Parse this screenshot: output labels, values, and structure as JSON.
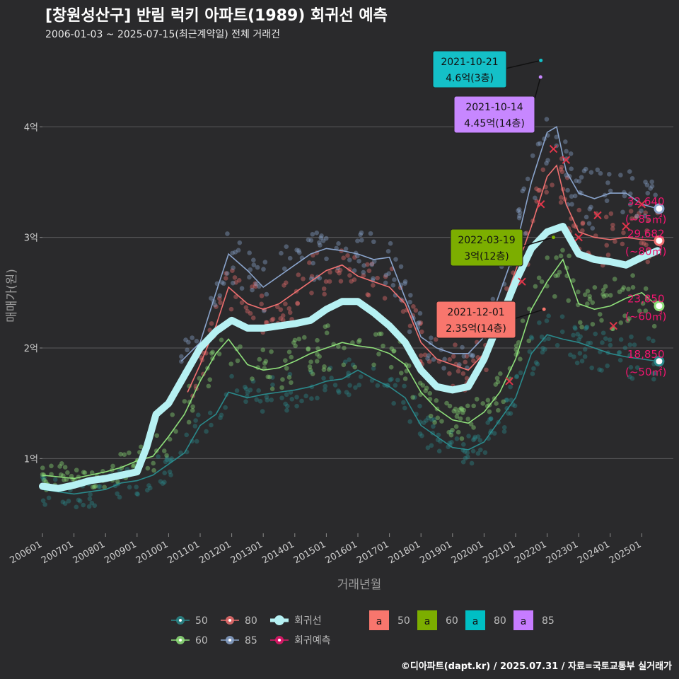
{
  "header": {
    "title": "[창원성산구] 반림 럭키 아파트(1989) 회귀선 예측",
    "subtitle": "2006-01-03 ~ 2025-07-15(최근계약일) 전체 거래건"
  },
  "caption": "©디아파트(dapt.kr) / 2025.07.31 / 자료=국토교통부 실거래가",
  "chart_data": {
    "type": "line",
    "xlabel": "거래년월",
    "ylabel": "매매가(원)",
    "x_ticks": [
      "200601",
      "200701",
      "200801",
      "200901",
      "201001",
      "201101",
      "201201",
      "201301",
      "201401",
      "201501",
      "201601",
      "201701",
      "201801",
      "201901",
      "202001",
      "202101",
      "202201",
      "202301",
      "202401",
      "202501"
    ],
    "y_ticks": [
      {
        "value": 1,
        "label": "1억"
      },
      {
        "value": 2,
        "label": "2억"
      },
      {
        "value": 3,
        "label": "3억"
      },
      {
        "value": 4,
        "label": "4억"
      }
    ],
    "ylim": [
      0.35,
      4.75
    ],
    "xlim": [
      2006.0,
      2026.0
    ],
    "grid": "horizontal",
    "series": [
      {
        "name": "50",
        "color": "#2a8a8c",
        "x": [
          2006.0,
          2007.0,
          2008.0,
          2008.5,
          2009.0,
          2009.5,
          2010.0,
          2010.5,
          2011.0,
          2011.5,
          2011.9,
          2012.5,
          2013.0,
          2013.5,
          2014.0,
          2014.5,
          2015.0,
          2015.5,
          2016.0,
          2016.5,
          2017.0,
          2017.5,
          2018.0,
          2018.5,
          2019.0,
          2019.5,
          2020.0,
          2020.5,
          2021.0,
          2021.5,
          2022.0,
          2022.5,
          2023.0,
          2023.5,
          2024.0,
          2024.5,
          2025.0,
          2025.5
        ],
        "y": [
          0.72,
          0.68,
          0.72,
          0.78,
          0.8,
          0.85,
          0.95,
          1.05,
          1.3,
          1.4,
          1.6,
          1.55,
          1.58,
          1.6,
          1.62,
          1.65,
          1.7,
          1.72,
          1.8,
          1.72,
          1.65,
          1.55,
          1.3,
          1.2,
          1.1,
          1.08,
          1.15,
          1.35,
          1.55,
          1.95,
          2.12,
          2.08,
          2.05,
          2.0,
          1.95,
          1.92,
          1.9,
          1.88
        ]
      },
      {
        "name": "60",
        "color": "#8fe07a",
        "x": [
          2006.0,
          2007.0,
          2008.0,
          2008.5,
          2009.0,
          2009.5,
          2010.0,
          2010.5,
          2011.0,
          2011.5,
          2011.9,
          2012.5,
          2013.0,
          2013.5,
          2014.0,
          2014.5,
          2015.0,
          2015.5,
          2016.0,
          2016.5,
          2017.0,
          2017.5,
          2018.0,
          2018.5,
          2019.0,
          2019.5,
          2020.0,
          2020.5,
          2021.0,
          2021.5,
          2022.0,
          2022.5,
          2023.0,
          2023.5,
          2024.0,
          2024.5,
          2025.0,
          2025.5
        ],
        "y": [
          0.85,
          0.82,
          0.88,
          0.92,
          0.98,
          1.02,
          1.2,
          1.4,
          1.7,
          1.95,
          2.08,
          1.85,
          1.8,
          1.82,
          1.88,
          1.95,
          2.0,
          2.05,
          2.02,
          2.0,
          1.95,
          1.85,
          1.6,
          1.45,
          1.35,
          1.32,
          1.42,
          1.6,
          1.9,
          2.35,
          2.6,
          2.8,
          2.4,
          2.35,
          2.38,
          2.45,
          2.5,
          2.38
        ]
      },
      {
        "name": "80",
        "color": "#f07070",
        "x": [
          2010.6,
          2011.0,
          2011.5,
          2011.9,
          2012.5,
          2013.0,
          2013.5,
          2014.0,
          2014.5,
          2015.0,
          2015.5,
          2016.0,
          2016.5,
          2017.0,
          2017.5,
          2018.0,
          2018.5,
          2019.0,
          2019.5,
          2020.0,
          2020.5,
          2021.0,
          2021.5,
          2022.0,
          2022.3,
          2022.6,
          2023.0,
          2023.5,
          2024.0,
          2024.5,
          2025.0,
          2025.5
        ],
        "y": [
          1.6,
          1.85,
          2.2,
          2.55,
          2.4,
          2.35,
          2.4,
          2.5,
          2.6,
          2.7,
          2.75,
          2.65,
          2.6,
          2.55,
          2.4,
          2.05,
          1.9,
          1.85,
          1.8,
          1.95,
          2.3,
          2.7,
          3.1,
          3.55,
          3.65,
          3.3,
          3.05,
          3.0,
          2.98,
          3.0,
          2.98,
          2.97
        ]
      },
      {
        "name": "85",
        "color": "#8aa4cc",
        "x": [
          2010.4,
          2011.0,
          2011.5,
          2011.9,
          2012.5,
          2013.0,
          2013.5,
          2014.0,
          2014.5,
          2015.0,
          2015.5,
          2016.0,
          2016.5,
          2017.0,
          2017.5,
          2018.0,
          2018.5,
          2019.0,
          2019.5,
          2020.0,
          2020.5,
          2021.0,
          2021.5,
          2022.0,
          2022.3,
          2022.6,
          2023.0,
          2023.5,
          2024.0,
          2024.5,
          2025.0,
          2025.5
        ],
        "y": [
          1.88,
          2.05,
          2.5,
          2.85,
          2.7,
          2.55,
          2.65,
          2.75,
          2.85,
          2.9,
          2.88,
          2.85,
          2.8,
          2.82,
          2.45,
          2.1,
          2.0,
          1.95,
          1.95,
          2.1,
          2.5,
          2.9,
          3.5,
          3.95,
          4.0,
          3.6,
          3.4,
          3.35,
          3.4,
          3.4,
          3.3,
          3.26
        ]
      },
      {
        "name": "회귀선",
        "color": "#b6f1f3",
        "x": [
          2006.0,
          2006.5,
          2007.0,
          2007.5,
          2008.0,
          2008.5,
          2009.0,
          2009.3,
          2009.6,
          2010.0,
          2010.5,
          2011.0,
          2011.5,
          2012.0,
          2012.5,
          2013.0,
          2013.5,
          2014.0,
          2014.5,
          2015.0,
          2015.5,
          2016.0,
          2016.5,
          2017.0,
          2017.5,
          2018.0,
          2018.5,
          2019.0,
          2019.5,
          2020.0,
          2020.5,
          2021.0,
          2021.5,
          2022.0,
          2022.5,
          2023.0,
          2023.5,
          2024.0,
          2024.5,
          2025.0,
          2025.5
        ],
        "y": [
          0.75,
          0.73,
          0.76,
          0.8,
          0.82,
          0.85,
          0.88,
          1.1,
          1.4,
          1.5,
          1.75,
          2.0,
          2.15,
          2.25,
          2.18,
          2.18,
          2.2,
          2.22,
          2.25,
          2.35,
          2.42,
          2.42,
          2.32,
          2.2,
          2.05,
          1.8,
          1.65,
          1.62,
          1.65,
          1.9,
          2.25,
          2.6,
          2.9,
          3.05,
          3.1,
          2.85,
          2.8,
          2.78,
          2.75,
          2.82,
          2.88
        ]
      },
      {
        "name": "회귀예측",
        "color": "#e8166c",
        "x": [
          2020.8,
          2021.2,
          2021.8,
          2022.2,
          2022.6,
          2023.0,
          2023.6,
          2024.1,
          2024.5,
          2025.0
        ],
        "y": [
          1.7,
          2.6,
          3.3,
          3.8,
          3.7,
          3.0,
          3.2,
          2.2,
          3.1,
          3.3
        ]
      }
    ],
    "callouts": [
      {
        "date": "2021-10-21",
        "text": "4.6억(3층)",
        "x": 2021.8,
        "y": 4.6,
        "color": "#14c0c8",
        "legend_area": "80"
      },
      {
        "date": "2021-10-14",
        "text": "4.45억(14층)",
        "x": 2021.79,
        "y": 4.45,
        "color": "#c787ff",
        "legend_area": "85"
      },
      {
        "date": "2022-03-19",
        "text": "3억(12층)",
        "x": 2022.2,
        "y": 3.0,
        "color": "#7cae00",
        "legend_area": "60"
      },
      {
        "date": "2021-12-01",
        "text": "2.35억(14층)",
        "x": 2021.9,
        "y": 2.35,
        "color": "#f8766d",
        "legend_area": "50"
      }
    ],
    "end_labels": [
      {
        "value": "32,640",
        "area": "(~85㎡)",
        "y": 3.26,
        "color": "#8aa4cc"
      },
      {
        "value": "29,682",
        "area": "(~80㎡)",
        "y": 2.97,
        "color": "#f07070"
      },
      {
        "value": "23,850",
        "area": "(~60㎡)",
        "y": 2.38,
        "color": "#8fe07a"
      },
      {
        "value": "18,850",
        "area": "(~50㎡)",
        "y": 1.88,
        "color": "#2a8a8c"
      }
    ],
    "legend": {
      "position": "bottom",
      "line_items": [
        {
          "label": "50",
          "color": "#2a8a8c",
          "kind": "point"
        },
        {
          "label": "80",
          "color": "#f07070",
          "kind": "point"
        },
        {
          "label": "회귀선",
          "color": "#b6f1f3",
          "kind": "line"
        },
        {
          "label": "60",
          "color": "#8fe07a",
          "kind": "point"
        },
        {
          "label": "85",
          "color": "#8aa4cc",
          "kind": "point"
        },
        {
          "label": "회귀예측",
          "color": "#e8166c",
          "kind": "point"
        }
      ],
      "box_items": [
        {
          "glyph": "a",
          "label": "50",
          "color": "#f8766d"
        },
        {
          "glyph": "a",
          "label": "60",
          "color": "#7cae00"
        },
        {
          "glyph": "a",
          "label": "80",
          "color": "#00bfc4"
        },
        {
          "glyph": "a",
          "label": "85",
          "color": "#c77cff"
        }
      ]
    }
  }
}
